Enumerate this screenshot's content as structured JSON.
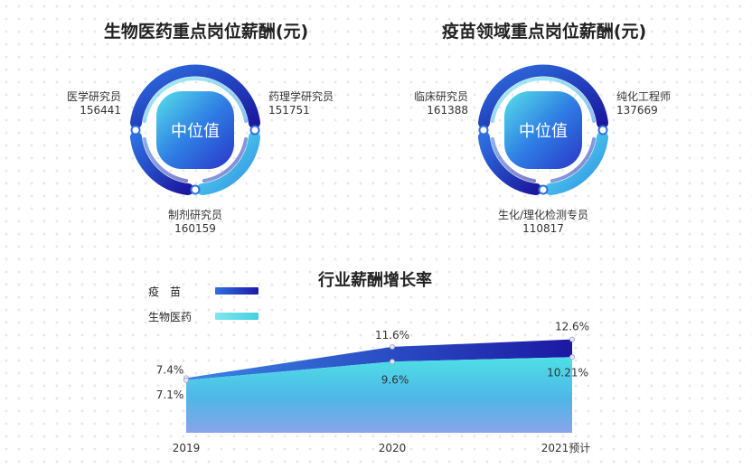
{
  "colors": {
    "dark": "#1e1aa8",
    "mid": "#2f6fe0",
    "light": "#48d8e6"
  },
  "chart_data": [
    {
      "type": "pie",
      "title": "生物医药重点岗位薪酬(元)",
      "center_label": "中位值",
      "slices": [
        {
          "name": "医学研究员",
          "value": 156441
        },
        {
          "name": "药理学研究员",
          "value": 151751
        },
        {
          "name": "制剂研究员",
          "value": 160159
        }
      ]
    },
    {
      "type": "pie",
      "title": "疫苗领域重点岗位薪酬(元)",
      "center_label": "中位值",
      "slices": [
        {
          "name": "临床研究员",
          "value": 161388
        },
        {
          "name": "纯化工程师",
          "value": 137669
        },
        {
          "name": "生化/理化检测专员",
          "value": 110817
        }
      ]
    },
    {
      "type": "area",
      "title": "行业薪酬增长率",
      "categories": [
        "2019",
        "2020",
        "2021预计"
      ],
      "series": [
        {
          "name": "疫　苗",
          "values": [
            7.4,
            11.6,
            12.6
          ],
          "labels": [
            "7.4%",
            "11.6%",
            "12.6%"
          ]
        },
        {
          "name": "生物医药",
          "values": [
            7.1,
            9.6,
            10.21
          ],
          "labels": [
            "7.1%",
            "9.6%",
            "10.21%"
          ]
        }
      ],
      "legend": "top-left",
      "grid": false
    }
  ]
}
